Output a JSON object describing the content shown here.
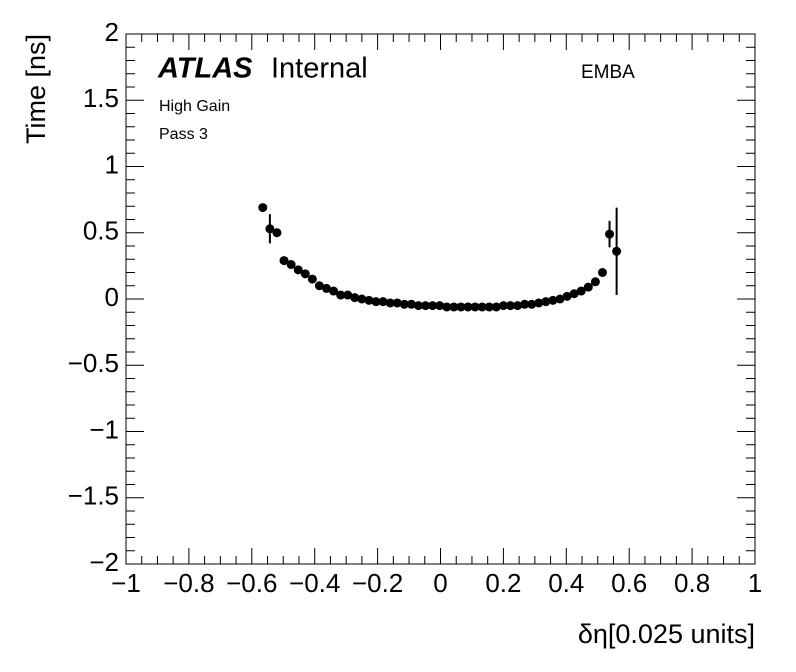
{
  "chart_data": {
    "type": "scatter",
    "experiment": "ATLAS",
    "label": "Internal",
    "region": "EMBA",
    "notes": [
      "High Gain",
      "Pass 3"
    ],
    "x_label": "δη[0.025 units]",
    "y_label": "Time [ns]",
    "color": "#000000",
    "xlim": [
      -1,
      1
    ],
    "ylim": [
      -2,
      2
    ],
    "xticks": [
      {
        "value": -1,
        "label": "−1"
      },
      {
        "value": -0.8,
        "label": "−0.8"
      },
      {
        "value": -0.6,
        "label": "−0.6"
      },
      {
        "value": -0.4,
        "label": "−0.4"
      },
      {
        "value": -0.2,
        "label": "−0.2"
      },
      0,
      0.2,
      0.4,
      0.6,
      0.8,
      1
    ],
    "yticks": [
      {
        "value": -2,
        "label": "−2"
      },
      {
        "value": -1.5,
        "label": "−1.5"
      },
      {
        "value": -1,
        "label": "−1"
      },
      {
        "value": -0.5,
        "label": "−0.5"
      },
      0,
      0.5,
      1,
      1.5,
      2
    ],
    "x": [
      -0.565,
      -0.5425,
      -0.52,
      -0.4975,
      -0.475,
      -0.4525,
      -0.43,
      -0.4075,
      -0.385,
      -0.3625,
      -0.34,
      -0.3175,
      -0.295,
      -0.2725,
      -0.25,
      -0.2275,
      -0.205,
      -0.1825,
      -0.16,
      -0.1375,
      -0.115,
      -0.0925,
      -0.07,
      -0.0475,
      -0.025,
      -0.0025,
      0.02,
      0.0425,
      0.065,
      0.0875,
      0.11,
      0.1325,
      0.155,
      0.1775,
      0.2,
      0.2225,
      0.245,
      0.2675,
      0.29,
      0.3125,
      0.335,
      0.3575,
      0.38,
      0.4025,
      0.425,
      0.4475,
      0.47,
      0.4925,
      0.515,
      0.5375,
      0.56
    ],
    "values": [
      0.69,
      0.53,
      0.5,
      0.29,
      0.26,
      0.22,
      0.19,
      0.15,
      0.1,
      0.08,
      0.06,
      0.03,
      0.03,
      0.01,
      0.0,
      -0.01,
      -0.02,
      -0.02,
      -0.03,
      -0.03,
      -0.04,
      -0.04,
      -0.05,
      -0.05,
      -0.05,
      -0.05,
      -0.06,
      -0.06,
      -0.06,
      -0.06,
      -0.06,
      -0.06,
      -0.06,
      -0.06,
      -0.05,
      -0.05,
      -0.05,
      -0.04,
      -0.04,
      -0.03,
      -0.02,
      -0.01,
      0.0,
      0.02,
      0.04,
      0.06,
      0.09,
      0.13,
      0.2,
      0.49,
      0.36
    ],
    "errors": [
      0.01,
      0.11,
      0.01,
      0.01,
      0.01,
      0.01,
      0.01,
      0.01,
      0.01,
      0.01,
      0.01,
      0.01,
      0.01,
      0.01,
      0.01,
      0.01,
      0.01,
      0.01,
      0.01,
      0.01,
      0.01,
      0.01,
      0.01,
      0.01,
      0.01,
      0.01,
      0.01,
      0.01,
      0.01,
      0.01,
      0.01,
      0.01,
      0.01,
      0.01,
      0.01,
      0.01,
      0.01,
      0.01,
      0.01,
      0.01,
      0.01,
      0.01,
      0.01,
      0.01,
      0.01,
      0.01,
      0.01,
      0.01,
      0.01,
      0.1,
      0.33
    ]
  }
}
